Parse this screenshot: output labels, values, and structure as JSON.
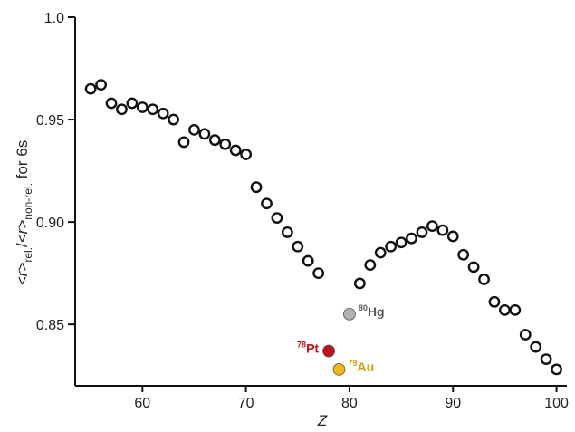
{
  "chart_data": {
    "type": "scatter",
    "xlabel": "Z",
    "ylabel": "<r>rel./<r>non-rel. for 6s",
    "ylabel_parts": {
      "r1": "<r>",
      "sub1": "rel.",
      "slash": "/",
      "r2": "<r>",
      "sub2": "non-rel.",
      "tail": " for 6s"
    },
    "xlim": [
      53.5,
      101
    ],
    "ylim": [
      0.82,
      1.0
    ],
    "xticks": [
      "60",
      "70",
      "80",
      "90",
      "100"
    ],
    "xtick_values": [
      60,
      70,
      80,
      90,
      100
    ],
    "yticks": [
      "0.85",
      "0.90",
      "0.95",
      "1.0"
    ],
    "ytick_values": [
      0.85,
      0.9,
      0.95,
      1.0
    ],
    "series": [
      {
        "marker": "open-circle",
        "color": "#111111",
        "points": [
          [
            55,
            0.965
          ],
          [
            56,
            0.967
          ],
          [
            57,
            0.958
          ],
          [
            58,
            0.955
          ],
          [
            59,
            0.958
          ],
          [
            60,
            0.956
          ],
          [
            61,
            0.955
          ],
          [
            62,
            0.953
          ],
          [
            63,
            0.95
          ],
          [
            64,
            0.939
          ],
          [
            65,
            0.945
          ],
          [
            66,
            0.943
          ],
          [
            67,
            0.94
          ],
          [
            68,
            0.938
          ],
          [
            69,
            0.935
          ],
          [
            70,
            0.933
          ],
          [
            71,
            0.917
          ],
          [
            72,
            0.909
          ],
          [
            73,
            0.902
          ],
          [
            74,
            0.895
          ],
          [
            75,
            0.888
          ],
          [
            76,
            0.881
          ],
          [
            77,
            0.875
          ],
          [
            81,
            0.87
          ],
          [
            82,
            0.879
          ],
          [
            83,
            0.885
          ],
          [
            84,
            0.888
          ],
          [
            85,
            0.89
          ],
          [
            86,
            0.892
          ],
          [
            87,
            0.895
          ],
          [
            88,
            0.898
          ],
          [
            89,
            0.896
          ],
          [
            90,
            0.893
          ],
          [
            91,
            0.884
          ],
          [
            92,
            0.878
          ],
          [
            93,
            0.872
          ],
          [
            94,
            0.861
          ],
          [
            95,
            0.857
          ],
          [
            96,
            0.857
          ],
          [
            97,
            0.845
          ],
          [
            98,
            0.839
          ],
          [
            99,
            0.833
          ],
          [
            100,
            0.828
          ]
        ]
      }
    ],
    "highlights": [
      {
        "z": 78,
        "y": 0.837,
        "symbol": "Pt",
        "number": "78",
        "color": "#c0121b",
        "label_side": "left"
      },
      {
        "z": 79,
        "y": 0.828,
        "symbol": "Au",
        "number": "79",
        "color": "#f2b713",
        "text_color": "#d4a10d",
        "label_side": "right"
      },
      {
        "z": 80,
        "y": 0.855,
        "symbol": "Hg",
        "number": "80",
        "color": "#b3b3b3",
        "text_color": "#555555",
        "label_side": "right"
      }
    ]
  }
}
